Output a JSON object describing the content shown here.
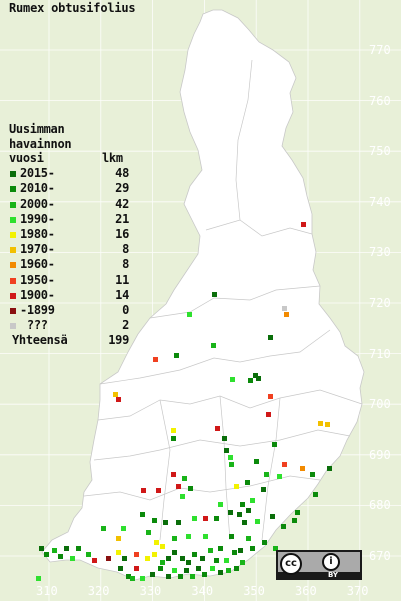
{
  "title": "Rumex obtusifolius",
  "legend": {
    "header_lines": [
      "Uusimman",
      "havainnon"
    ],
    "col_year": "vuosi",
    "col_count": "lkm",
    "rows": [
      {
        "label": "2015-",
        "count": "48",
        "color": "#0a6e0a"
      },
      {
        "label": "2010-",
        "count": "29",
        "color": "#0b8a0b"
      },
      {
        "label": "2000-",
        "count": "42",
        "color": "#19b419"
      },
      {
        "label": "1990-",
        "count": "21",
        "color": "#2ee02e"
      },
      {
        "label": "1980-",
        "count": "16",
        "color": "#f2f200"
      },
      {
        "label": "1970-",
        "count": "8",
        "color": "#f2c000"
      },
      {
        "label": "1960-",
        "count": "8",
        "color": "#f28a00"
      },
      {
        "label": "1950-",
        "count": "11",
        "color": "#f04020"
      },
      {
        "label": "1900-",
        "count": "14",
        "color": "#d01818"
      },
      {
        "label": "-1899",
        "count": "0",
        "color": "#8a1010"
      },
      {
        "label": " ???",
        "count": "2",
        "color": "#c8c8c8"
      }
    ],
    "total_label": "Yhteensä",
    "total_count": "199"
  },
  "axis": {
    "y_labels": [
      "770",
      "760",
      "750",
      "740",
      "730",
      "720",
      "710",
      "700",
      "690",
      "680",
      "670"
    ],
    "x_labels": [
      "310",
      "320",
      "330",
      "340",
      "350",
      "360",
      "370"
    ]
  },
  "license": {
    "cc": "cc",
    "by_icon": "person-icon",
    "by": "BY"
  },
  "colors": {
    "background": "#e8f0d8",
    "land": "#ffffff",
    "border": "#c8c8c8"
  }
}
